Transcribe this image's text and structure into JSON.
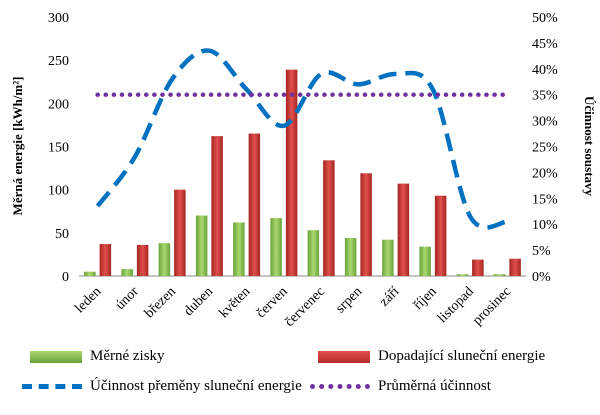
{
  "chart_data": {
    "type": "bar",
    "categories": [
      "leden",
      "únor",
      "březen",
      "duben",
      "květen",
      "červen",
      "červenec",
      "srpen",
      "září",
      "říjen",
      "listopad",
      "prosinec"
    ],
    "series": [
      {
        "name": "Měrné zisky",
        "type": "bar",
        "axis": "left",
        "color": "#8dc153",
        "values": [
          5,
          8,
          38,
          70,
          62,
          67,
          53,
          44,
          42,
          34,
          2,
          2
        ]
      },
      {
        "name": "Dopadající sluneční energie",
        "type": "bar",
        "axis": "left",
        "color": "#c0392b",
        "values": [
          37,
          36,
          100,
          162,
          165,
          239,
          134,
          119,
          107,
          93,
          19,
          20
        ]
      },
      {
        "name": "Účinnost přeměny sluneční energie",
        "type": "line",
        "style": "dashed",
        "axis": "right",
        "color": "#0070c0",
        "values": [
          13.5,
          23,
          38,
          43.5,
          36,
          29,
          39,
          37,
          39,
          36,
          11.5,
          10.5
        ]
      },
      {
        "name": "Průměrná účinnost",
        "type": "line",
        "style": "dotted",
        "axis": "right",
        "color": "#7030a0",
        "values": [
          35,
          35,
          35,
          35,
          35,
          35,
          35,
          35,
          35,
          35,
          35,
          35
        ]
      }
    ],
    "ylabel": "Měrná energie [kWh/m²]",
    "y2label": "Účinnost soustavy",
    "ylim": [
      0,
      300
    ],
    "yticks": [
      0,
      50,
      100,
      150,
      200,
      250,
      300
    ],
    "y2lim": [
      0,
      50
    ],
    "y2ticks": [
      "0%",
      "5%",
      "10%",
      "15%",
      "20%",
      "25%",
      "30%",
      "35%",
      "40%",
      "45%",
      "50%"
    ],
    "grid": false,
    "legend_position": "bottom"
  },
  "legend": [
    {
      "label": "Měrné zisky",
      "icon": "green-bar-swatch"
    },
    {
      "label": "Dopadající sluneční energie",
      "icon": "red-bar-swatch"
    },
    {
      "label": "Účinnost přeměny sluneční energie",
      "icon": "blue-dashed-line"
    },
    {
      "label": "Průměrná účinnost",
      "icon": "purple-dotted-line"
    }
  ]
}
